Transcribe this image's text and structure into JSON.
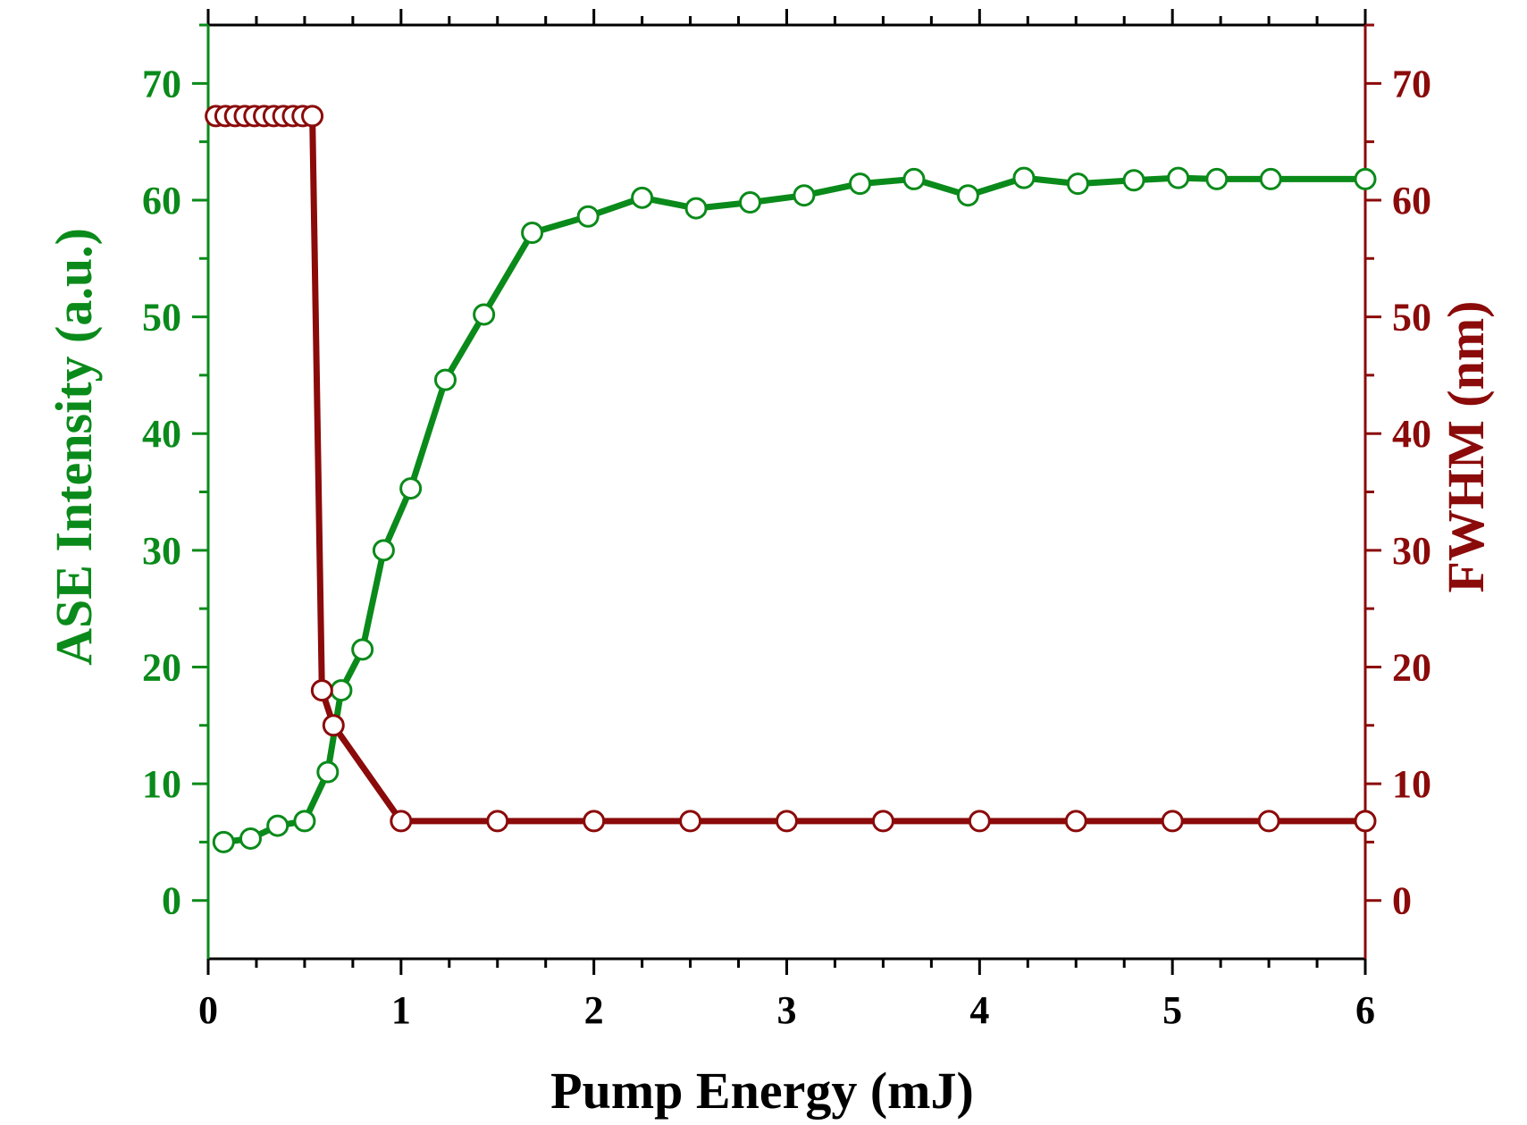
{
  "chart_data": {
    "type": "line",
    "xlabel": "Pump Energy (mJ)",
    "ylabel_left": "ASE Intensity (a.u.)",
    "ylabel_right": "FWHM (nm)",
    "xlim": [
      0,
      6
    ],
    "ylim_left": [
      -5,
      75
    ],
    "ylim_right": [
      -5,
      75
    ],
    "x_ticks": [
      "0",
      "1",
      "2",
      "3",
      "4",
      "5",
      "6"
    ],
    "y_ticks_left": [
      "0",
      "10",
      "20",
      "30",
      "40",
      "50",
      "60",
      "70"
    ],
    "y_ticks_right": [
      "0",
      "10",
      "20",
      "30",
      "40",
      "50",
      "60",
      "70"
    ],
    "grid": false,
    "legend": "none",
    "colors": {
      "left_axis": "#0a8a1a",
      "right_axis": "#8b0a0a",
      "marker_fill": "#ffffff"
    },
    "series": [
      {
        "axis": "left",
        "x": [
          0.08,
          0.22,
          0.36,
          0.5,
          0.62,
          0.69,
          0.8,
          0.91,
          1.05,
          1.23,
          1.43,
          1.68,
          1.97,
          2.25,
          2.53,
          2.81,
          3.09,
          3.38,
          3.66,
          3.94,
          4.23,
          4.51,
          4.8,
          5.03,
          5.23,
          5.51,
          6.0
        ],
        "y": [
          5.0,
          5.3,
          6.4,
          6.8,
          11.0,
          18.0,
          21.5,
          30.0,
          35.3,
          44.6,
          50.2,
          57.2,
          58.6,
          60.2,
          59.3,
          59.8,
          60.4,
          61.4,
          61.8,
          60.4,
          61.9,
          61.4,
          61.7,
          61.9,
          61.8,
          61.8,
          61.8
        ]
      },
      {
        "axis": "right",
        "x": [
          0.04,
          0.09,
          0.14,
          0.19,
          0.24,
          0.29,
          0.34,
          0.39,
          0.44,
          0.49,
          0.54,
          0.59,
          0.65,
          1.0,
          1.5,
          2.0,
          2.5,
          3.0,
          3.5,
          4.0,
          4.5,
          5.0,
          5.5,
          6.0
        ],
        "y": [
          67.2,
          67.2,
          67.2,
          67.2,
          67.2,
          67.2,
          67.2,
          67.2,
          67.2,
          67.2,
          67.2,
          18.0,
          15.0,
          6.8,
          6.8,
          6.8,
          6.8,
          6.8,
          6.8,
          6.8,
          6.8,
          6.8,
          6.8,
          6.8
        ]
      }
    ]
  }
}
